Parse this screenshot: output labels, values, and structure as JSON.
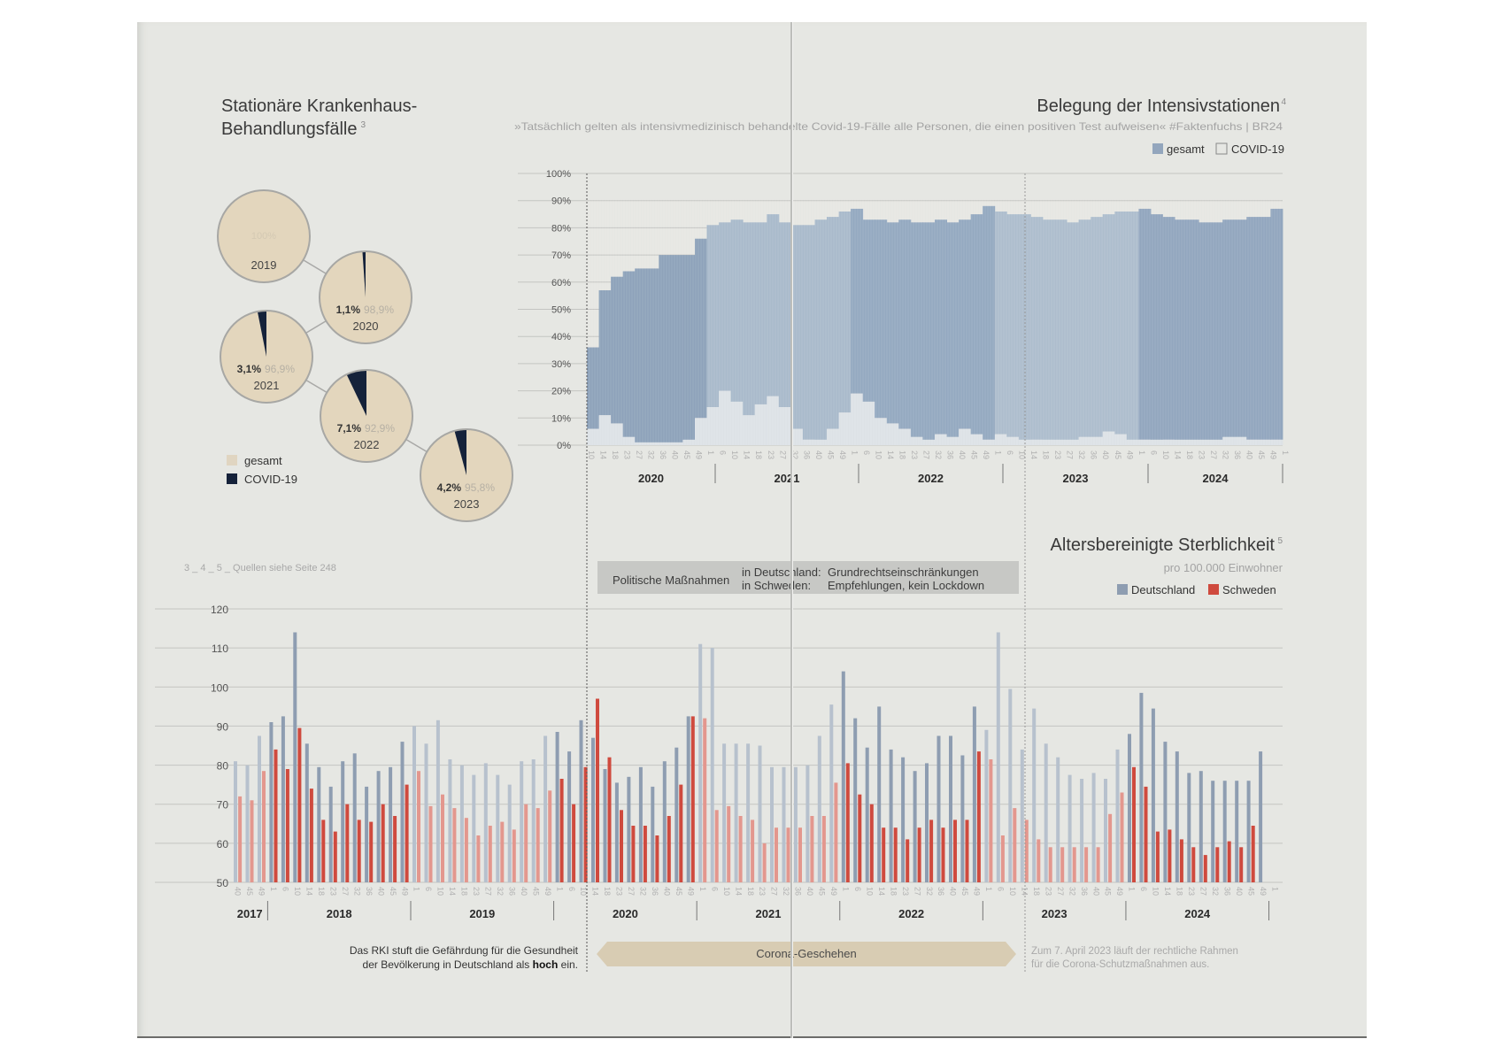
{
  "hospital": {
    "title_line1": "Stationäre Krankenhaus-",
    "title_line2": "Behandlungsfälle",
    "footnote": "3",
    "legend": [
      {
        "label": "gesamt",
        "color": "#e3d6bd"
      },
      {
        "label": "COVID-19",
        "color": "#15223a"
      }
    ]
  },
  "icu": {
    "title": "Belegung der Intensivstationen",
    "footnote": "4",
    "quote": "»Tatsächlich gelten als intensivmedizinisch behandelte Covid-19-Fälle alle Personen, die einen positiven Test aufweisen« #Faktenfuchs | BR24",
    "legend": [
      {
        "label": "gesamt",
        "color": "#93a6bd"
      },
      {
        "label": "COVID-19",
        "color": "#e6e7e3"
      }
    ]
  },
  "mortality": {
    "title": "Altersbereinigte Sterblichkeit",
    "footnote": "5",
    "subtitle": "pro 100.000 Einwohner",
    "legend": [
      {
        "label": "Deutschland",
        "color": "#8e9db1"
      },
      {
        "label": "Schweden",
        "color": "#cf4a3e"
      }
    ]
  },
  "sources_note": "3 _ 4 _ 5 _ Quellen siehe Seite 248",
  "policy_box": {
    "label": "Politische Maßnahmen",
    "row1_country": "in Deutschland:",
    "row1_value": "Grundrechtseinschränkungen",
    "row2_country": "in Schweden:",
    "row2_value": "Empfehlungen, kein Lockdown"
  },
  "annotations": {
    "rki_line1": "Das RKI stuft die Gefährdung für die Gesundheit",
    "rki_line2_pre": "der Bevölkerung in Deutschland als ",
    "rki_line2_bold": "hoch",
    "rki_line2_post": " ein.",
    "corona_band": "Corona-Geschehen",
    "end_line1": "Zum 7. April 2023 läuft der rechtliche Rahmen",
    "end_line2": "für die Corona-Schutzmaßnahmen aus."
  },
  "chart_data": [
    {
      "type": "pie",
      "title": "Stationäre Krankenhaus-Behandlungsfälle",
      "series": [
        {
          "year": "2019",
          "covid_pct": 0,
          "total_pct": 100,
          "covid_label": "",
          "total_label": "100%"
        },
        {
          "year": "2020",
          "covid_pct": 1.1,
          "total_pct": 98.9,
          "covid_label": "1,1%",
          "total_label": "98,9%"
        },
        {
          "year": "2021",
          "covid_pct": 3.1,
          "total_pct": 96.9,
          "covid_label": "3,1%",
          "total_label": "96,9%"
        },
        {
          "year": "2022",
          "covid_pct": 7.1,
          "total_pct": 92.9,
          "covid_label": "7,1%",
          "total_label": "92,9%"
        },
        {
          "year": "2023",
          "covid_pct": 4.2,
          "total_pct": 95.8,
          "covid_label": "4,2%",
          "total_label": "95,8%"
        }
      ]
    },
    {
      "type": "area",
      "title": "Belegung der Intensivstationen",
      "ylabel": "",
      "ylim": [
        0,
        100
      ],
      "yticks": [
        "0%",
        "10%",
        "20%",
        "30%",
        "40%",
        "50%",
        "60%",
        "70%",
        "80%",
        "90%",
        "100%"
      ],
      "years": [
        "2020",
        "2021",
        "2022",
        "2023",
        "2024"
      ],
      "week_ticks": [
        [
          "10",
          "14",
          "18",
          "23",
          "27",
          "32",
          "36",
          "40",
          "45",
          "49"
        ],
        [
          "1",
          "6",
          "10",
          "14",
          "18",
          "23",
          "27",
          "32",
          "36",
          "40",
          "45",
          "49"
        ],
        [
          "1",
          "6",
          "10",
          "14",
          "18",
          "23",
          "27",
          "32",
          "36",
          "40",
          "45",
          "49"
        ],
        [
          "1",
          "6",
          "10",
          "14",
          "18",
          "23",
          "27",
          "32",
          "36",
          "40",
          "45",
          "49"
        ],
        [
          "1",
          "6",
          "10",
          "14",
          "18",
          "23",
          "27",
          "32",
          "36",
          "40",
          "45",
          "49"
        ],
        [
          "1"
        ]
      ],
      "series": [
        {
          "name": "gesamt",
          "unit": "% occupancy, sampled monthly from 2020 wk10 to 2025 wk1",
          "values": [
            36,
            57,
            62,
            64,
            65,
            65,
            70,
            70,
            70,
            76,
            81,
            82,
            83,
            82,
            82,
            85,
            82,
            81,
            81,
            83,
            84,
            86,
            87,
            83,
            83,
            82,
            83,
            82,
            82,
            83,
            82,
            83,
            85,
            88,
            86,
            85,
            85,
            84,
            83,
            83,
            82,
            83,
            84,
            85,
            86,
            86,
            87,
            85,
            84,
            83,
            83,
            82,
            82,
            83,
            83,
            84,
            84,
            87
          ]
        },
        {
          "name": "COVID-19",
          "unit": "% occupancy, sampled monthly",
          "values": [
            6,
            11,
            8,
            3,
            1,
            1,
            1,
            1,
            2,
            10,
            14,
            20,
            16,
            11,
            15,
            18,
            14,
            6,
            2,
            2,
            6,
            12,
            19,
            16,
            10,
            8,
            6,
            3,
            2,
            4,
            3,
            6,
            4,
            2,
            4,
            3,
            2,
            2,
            2,
            2,
            2,
            3,
            3,
            5,
            4,
            2,
            2,
            2,
            2,
            2,
            2,
            2,
            2,
            3,
            3,
            2,
            2,
            2
          ]
        }
      ]
    },
    {
      "type": "bar",
      "title": "Altersbereinigte Sterblichkeit",
      "subtitle": "pro 100.000 Einwohner",
      "ylim": [
        50,
        120
      ],
      "yticks": [
        50,
        60,
        70,
        80,
        90,
        100,
        110,
        120
      ],
      "years": [
        "2017",
        "2018",
        "2019",
        "2020",
        "2021",
        "2022",
        "2023",
        "2024"
      ],
      "categories": [
        "40",
        "45",
        "49",
        "1",
        "6",
        "10",
        "14",
        "18",
        "23",
        "27",
        "32",
        "36",
        "40",
        "45",
        "49",
        "1",
        "6",
        "10",
        "14",
        "18",
        "23",
        "27",
        "32",
        "36",
        "40",
        "45",
        "49",
        "1",
        "6",
        "10",
        "14",
        "18",
        "23",
        "27",
        "32",
        "36",
        "40",
        "45",
        "49",
        "1",
        "6",
        "10",
        "14",
        "18",
        "23",
        "27",
        "32",
        "36",
        "40",
        "45",
        "49",
        "1",
        "6",
        "10",
        "14",
        "18",
        "23",
        "27",
        "32",
        "36",
        "40",
        "45",
        "49",
        "1",
        "6",
        "10",
        "14",
        "18",
        "23",
        "27",
        "32",
        "36",
        "40",
        "45",
        "49",
        "1",
        "6",
        "10",
        "14",
        "18",
        "23",
        "27",
        "32",
        "36",
        "40",
        "45",
        "49",
        "1"
      ],
      "series": [
        {
          "name": "Deutschland",
          "values": [
            81,
            80,
            87.5,
            91,
            92.5,
            114,
            85.5,
            79.5,
            74.5,
            81,
            83,
            74.5,
            78.5,
            79.5,
            86,
            90,
            85.5,
            91.5,
            81.5,
            80,
            77.5,
            80.5,
            77.5,
            75,
            81,
            81.5,
            87.5,
            88.5,
            83.5,
            91.5,
            87,
            79,
            75.5,
            77,
            79.5,
            74.5,
            81,
            84.5,
            92.5,
            111,
            110,
            85.5,
            85.5,
            85.5,
            85,
            79.5,
            79.5,
            79.5,
            80,
            87.5,
            95.5,
            104,
            92,
            84.5,
            95,
            84,
            82,
            78.5,
            80.5,
            87.5,
            87.5,
            82.5,
            95,
            89,
            114,
            99.5,
            84,
            94.5,
            85.5,
            82,
            77.5,
            76.5,
            78,
            76.5,
            84,
            88,
            98.5,
            94.5,
            86,
            83.5,
            78,
            78.5,
            76,
            76,
            76,
            76,
            83.5,
            null,
            null,
            null
          ]
        },
        {
          "name": "Schweden",
          "values": [
            72,
            71,
            78.5,
            84,
            79,
            89.5,
            74,
            66,
            63,
            70,
            66,
            65.5,
            70,
            67,
            75,
            78.5,
            69.5,
            72.5,
            69,
            66.5,
            62,
            64.5,
            65.5,
            63.5,
            70,
            69,
            73.5,
            76.5,
            70,
            79.5,
            97,
            82,
            68.5,
            64.5,
            64.5,
            62,
            67,
            75,
            92.5,
            92,
            68.5,
            69.5,
            67,
            66,
            60,
            64,
            64,
            64,
            67,
            67,
            75.5,
            80.5,
            72.5,
            70,
            64,
            64,
            61,
            64,
            66,
            64,
            66,
            66,
            83.5,
            81.5,
            62,
            69,
            66,
            61,
            59,
            59,
            59,
            59,
            59,
            67.5,
            73,
            79.5,
            74.5,
            63,
            63.5,
            61,
            59,
            57,
            59,
            60.5,
            59,
            64.5,
            null,
            null,
            null
          ]
        }
      ]
    }
  ]
}
